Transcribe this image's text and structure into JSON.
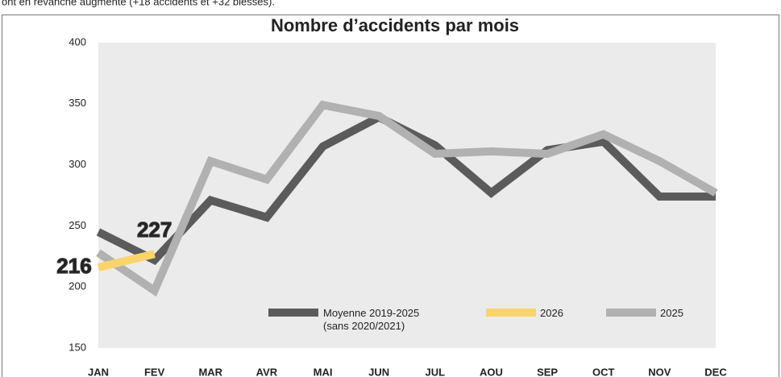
{
  "intro": "ont en revanche augmenté (+18 accidents et +32 blessés).",
  "chart_data": {
    "type": "line",
    "title": "Nombre d’accidents par mois",
    "categories": [
      "JAN",
      "FEV",
      "MAR",
      "AVR",
      "MAI",
      "JUN",
      "JUL",
      "AOU",
      "SEP",
      "OCT",
      "NOV",
      "DEC"
    ],
    "series": [
      {
        "name": "Moyenne 2019-2025 (sans 2020/2021)",
        "color": "#5b5b5b",
        "values": [
          245,
          222,
          271,
          257,
          315,
          339,
          316,
          277,
          312,
          319,
          274,
          274
        ]
      },
      {
        "name": "2026",
        "color": "#f9d46b",
        "values": [
          216,
          227,
          null,
          null,
          null,
          null,
          null,
          null,
          null,
          null,
          null,
          null
        ]
      },
      {
        "name": "2025",
        "color": "#b1b1b1",
        "values": [
          228,
          197,
          303,
          288,
          349,
          340,
          309,
          311,
          309,
          325,
          303,
          277
        ]
      }
    ],
    "ylim": [
      150,
      400
    ],
    "yticks": [
      150,
      200,
      250,
      300,
      350,
      400
    ],
    "grid": false
  }
}
